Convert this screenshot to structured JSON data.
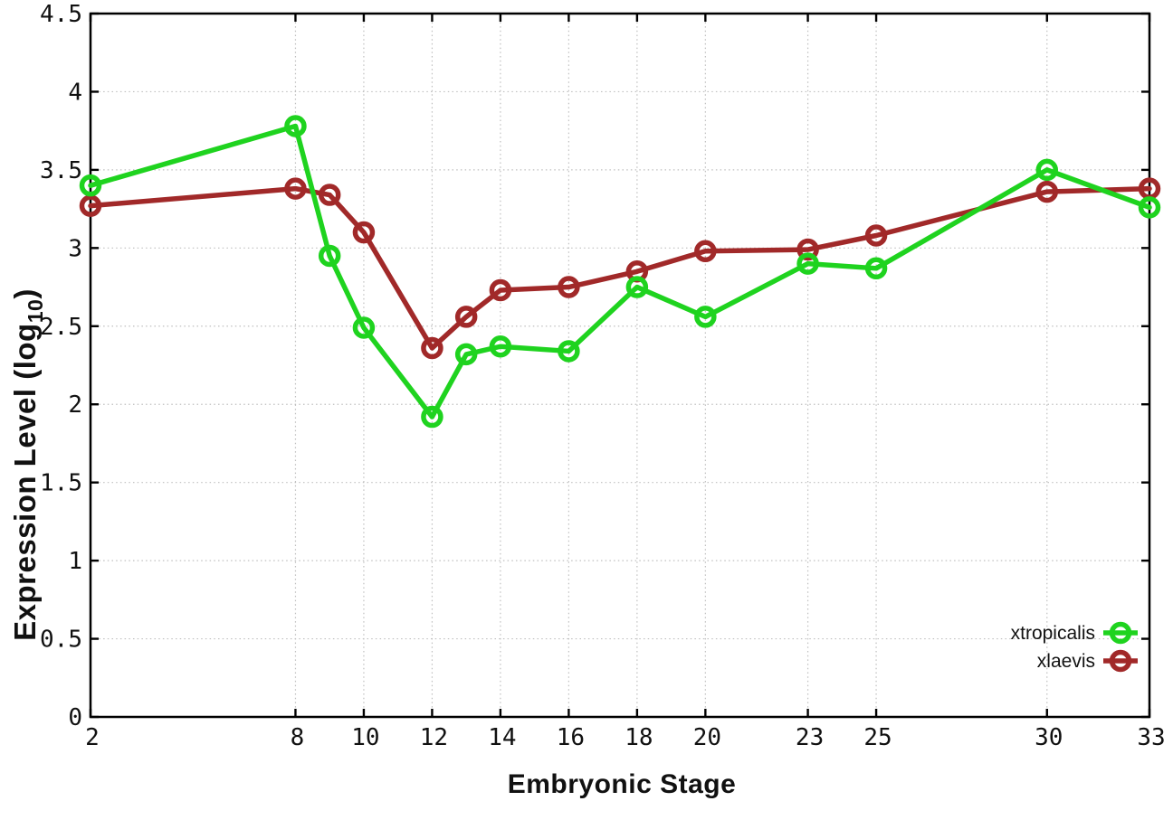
{
  "figure": {
    "background": "#ffffff",
    "xlabel": "Embryonic Stage",
    "ylabel": {
      "prefix": "Expression Level (log",
      "sub": "10",
      "suffix": ")"
    }
  },
  "chart_data": {
    "type": "line",
    "title": "",
    "xlabel": "Embryonic Stage",
    "ylabel": "Expression Level (log10)",
    "x": [
      2,
      8,
      9,
      10,
      12,
      13,
      14,
      16,
      18,
      20,
      23,
      25,
      30,
      33
    ],
    "series": [
      {
        "name": "xtropicalis",
        "color": "#1fd31f",
        "values": [
          3.4,
          3.78,
          2.95,
          2.49,
          1.92,
          2.32,
          2.37,
          2.34,
          2.75,
          2.56,
          2.9,
          2.87,
          3.5,
          3.26
        ]
      },
      {
        "name": "xlaevis",
        "color": "#a12929",
        "values": [
          3.27,
          3.38,
          3.34,
          3.1,
          2.36,
          2.56,
          2.73,
          2.75,
          2.85,
          2.98,
          2.99,
          3.08,
          3.36,
          3.38
        ]
      }
    ],
    "xlim": [
      2,
      33
    ],
    "ylim": [
      0,
      4.5
    ],
    "xticks": {
      "values": [
        2,
        8,
        10,
        12,
        14,
        16,
        18,
        20,
        23,
        25,
        30,
        33
      ],
      "labels": [
        "2",
        "8",
        "10",
        "12",
        "14",
        "16",
        "18",
        "20",
        "23",
        "25",
        "30",
        "33"
      ]
    },
    "yticks": {
      "values": [
        0,
        0.5,
        1,
        1.5,
        2,
        2.5,
        3,
        3.5,
        4,
        4.5
      ],
      "labels": [
        "0",
        "0.5",
        "1",
        "1.5",
        "2",
        "2.5",
        "3",
        "3.5",
        "4",
        "4.5"
      ]
    },
    "grid": true,
    "grid_color": "#bfbfbf",
    "axis_color": "#000000",
    "tick_label_color": "#111111",
    "marker": "open-circle",
    "legend": {
      "position": "bottom-right",
      "entries": [
        "xtropicalis",
        "xlaevis"
      ]
    }
  }
}
